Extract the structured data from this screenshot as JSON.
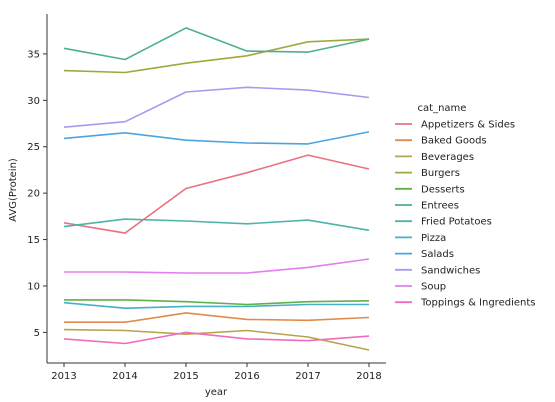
{
  "chart_data": {
    "type": "line",
    "xlabel": "year",
    "ylabel": "AVG(Protein)",
    "x": [
      2013,
      2014,
      2015,
      2016,
      2017,
      2018
    ],
    "xlim": [
      2013,
      2018
    ],
    "ylim": [
      1.7,
      39.3
    ],
    "yticks": [
      5,
      10,
      15,
      20,
      25,
      30,
      35
    ],
    "grid": false,
    "legend": {
      "title": "cat_name",
      "placement": "right"
    },
    "series": [
      {
        "name": "Appetizers & Sides",
        "color": "#e8737f",
        "values": [
          16.8,
          15.7,
          20.5,
          22.2,
          24.1,
          22.6
        ]
      },
      {
        "name": "Baked Goods",
        "color": "#e08b4a",
        "values": [
          6.1,
          6.1,
          7.1,
          6.4,
          6.3,
          6.6
        ]
      },
      {
        "name": "Beverages",
        "color": "#b8a24c",
        "values": [
          5.3,
          5.2,
          4.8,
          5.2,
          4.5,
          3.1
        ]
      },
      {
        "name": "Burgers",
        "color": "#a0a83d",
        "values": [
          33.2,
          33.0,
          34.0,
          34.8,
          36.3,
          36.6
        ]
      },
      {
        "name": "Desserts",
        "color": "#5fb14a",
        "values": [
          8.5,
          8.5,
          8.3,
          8.0,
          8.3,
          8.4
        ]
      },
      {
        "name": "Entrees",
        "color": "#4fb088",
        "values": [
          35.6,
          34.4,
          37.8,
          35.3,
          35.2,
          36.6
        ]
      },
      {
        "name": "Fried Potatoes",
        "color": "#4fb3aa",
        "values": [
          16.4,
          17.2,
          17.0,
          16.7,
          17.1,
          16.0
        ]
      },
      {
        "name": "Pizza",
        "color": "#47b0c6",
        "values": [
          8.2,
          7.6,
          7.8,
          7.8,
          8.0,
          8.0
        ]
      },
      {
        "name": "Salads",
        "color": "#4ba4e0",
        "values": [
          25.9,
          26.5,
          25.7,
          25.4,
          25.3,
          26.6
        ]
      },
      {
        "name": "Sandwiches",
        "color": "#a59cf0",
        "values": [
          27.1,
          27.7,
          30.9,
          31.4,
          31.1,
          30.3
        ]
      },
      {
        "name": "Soup",
        "color": "#e27ef0",
        "values": [
          11.5,
          11.5,
          11.4,
          11.4,
          12.0,
          12.9
        ]
      },
      {
        "name": "Toppings & Ingredients",
        "color": "#f06bbd",
        "values": [
          4.3,
          3.8,
          5.0,
          4.3,
          4.1,
          4.6
        ]
      }
    ]
  }
}
